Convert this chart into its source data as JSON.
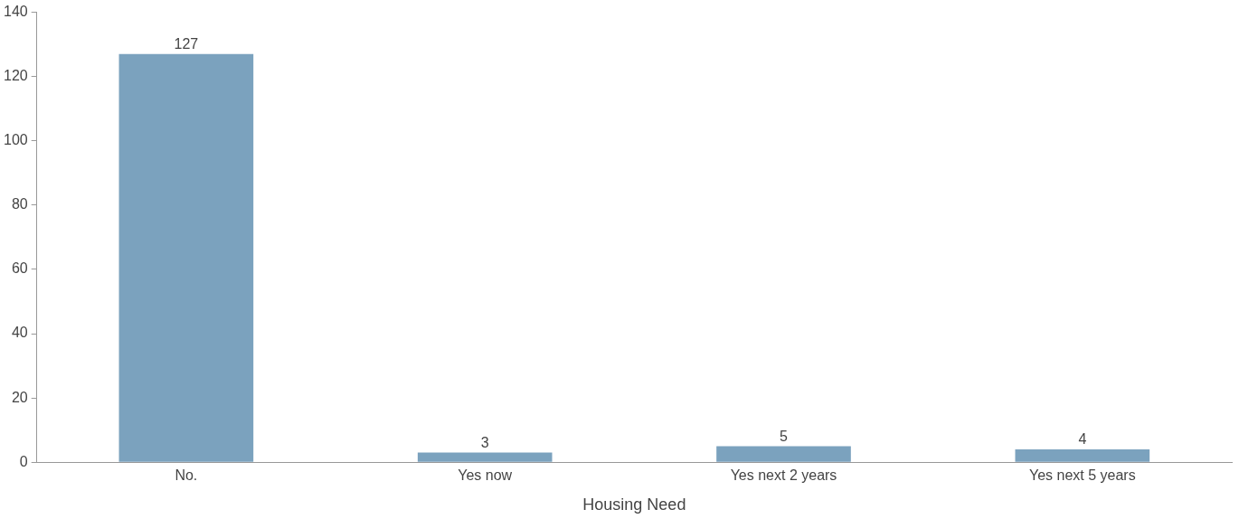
{
  "chart_data": {
    "type": "bar",
    "xlabel": "Housing Need",
    "categories": [
      "No.",
      "Yes now",
      "Yes next 2 years",
      "Yes next 5 years"
    ],
    "values": [
      127,
      3,
      5,
      4
    ],
    "color": "#7ba2be",
    "ylim": [
      0,
      140
    ],
    "yticks": [
      0,
      20,
      40,
      60,
      80,
      100,
      120,
      140
    ],
    "grid": false,
    "legend": false,
    "data_labels": true
  }
}
